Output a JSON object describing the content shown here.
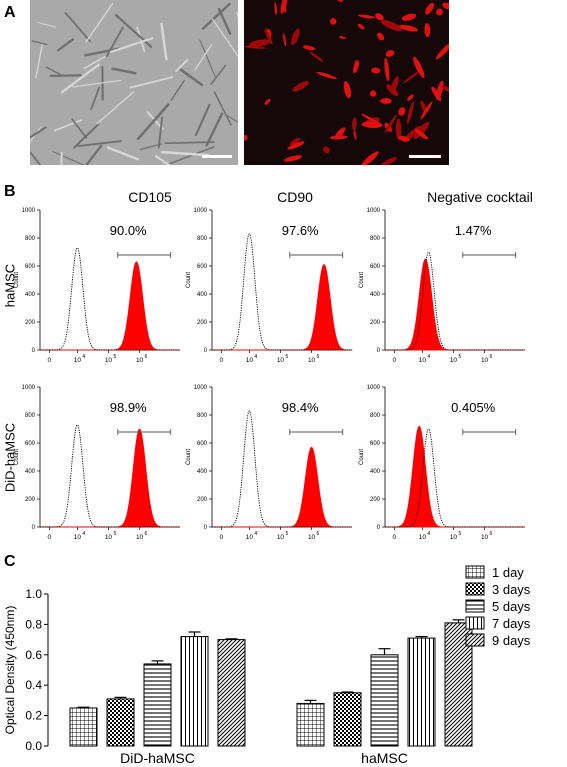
{
  "panel_a": {
    "label": "A",
    "images": [
      {
        "name": "brightfield",
        "bg": "#a9a9a9",
        "scalebar": true
      },
      {
        "name": "did-fluorescence",
        "bg": "#160808",
        "scalebar": true
      }
    ]
  },
  "panel_b": {
    "label": "B",
    "columns": [
      "CD105",
      "CD90",
      "Negative cocktail"
    ],
    "rows": [
      "haMSC",
      "DiD-haMSC"
    ],
    "y_ticks": [
      "0",
      "200",
      "400",
      "600",
      "800",
      "1000"
    ],
    "y_label": "Count",
    "x_ticks": [
      "0",
      "10",
      "10",
      "10"
    ],
    "x_exps": [
      "4",
      "5",
      "6"
    ],
    "fill_color": "#ff0000",
    "histograms": [
      {
        "row": "haMSC",
        "col": "CD105",
        "percent": "90.0%",
        "neg_peak_log": 4.0,
        "neg_height": 730,
        "pos_peak_log": 5.9,
        "pos_height": 630,
        "gate_from_log": 5.3,
        "gate_to_log": 7.0
      },
      {
        "row": "haMSC",
        "col": "CD90",
        "percent": "97.6%",
        "neg_peak_log": 4.0,
        "neg_height": 830,
        "pos_peak_log": 6.4,
        "pos_height": 610,
        "gate_from_log": 5.3,
        "gate_to_log": 7.0
      },
      {
        "row": "haMSC",
        "col": "Negative cocktail",
        "percent": "1.47%",
        "neg_peak_log": 4.2,
        "neg_height": 700,
        "pos_peak_log": 4.1,
        "pos_height": 650,
        "gate_from_log": 5.3,
        "gate_to_log": 7.0
      },
      {
        "row": "DiD-haMSC",
        "col": "CD105",
        "percent": "98.9%",
        "neg_peak_log": 4.0,
        "neg_height": 730,
        "pos_peak_log": 6.0,
        "pos_height": 700,
        "gate_from_log": 5.3,
        "gate_to_log": 7.0
      },
      {
        "row": "DiD-haMSC",
        "col": "CD90",
        "percent": "98.4%",
        "neg_peak_log": 4.0,
        "neg_height": 830,
        "pos_peak_log": 6.0,
        "pos_height": 570,
        "gate_from_log": 5.3,
        "gate_to_log": 7.0
      },
      {
        "row": "DiD-haMSC",
        "col": "Negative cocktail",
        "percent": "0.405%",
        "neg_peak_log": 4.2,
        "neg_height": 700,
        "pos_peak_log": 3.9,
        "pos_height": 720,
        "gate_from_log": 5.3,
        "gate_to_log": 7.0
      }
    ]
  },
  "chart_data": {
    "type": "bar",
    "panel_label": "C",
    "categories": [
      "DiD-haMSC",
      "haMSC"
    ],
    "ylabel": "Optical Density (450nm)",
    "xlabel": "",
    "ylim": [
      0.0,
      1.0
    ],
    "y_ticks": [
      "0.0",
      "0.2",
      "0.4",
      "0.6",
      "0.8",
      "1.0"
    ],
    "legend_position": "top-right",
    "series": [
      {
        "name": "1 day",
        "values": [
          0.25,
          0.28
        ],
        "errors": [
          0.005,
          0.02
        ],
        "pattern": "grid-fine"
      },
      {
        "name": "3 days",
        "values": [
          0.31,
          0.35
        ],
        "errors": [
          0.01,
          0.005
        ],
        "pattern": "checker"
      },
      {
        "name": "5 days",
        "values": [
          0.54,
          0.6
        ],
        "errors": [
          0.02,
          0.04
        ],
        "pattern": "h-lines"
      },
      {
        "name": "7 days",
        "values": [
          0.72,
          0.71
        ],
        "errors": [
          0.03,
          0.01
        ],
        "pattern": "v-lines"
      },
      {
        "name": "9 days",
        "values": [
          0.7,
          0.81
        ],
        "errors": [
          0.005,
          0.02
        ],
        "pattern": "diagonal"
      }
    ]
  }
}
